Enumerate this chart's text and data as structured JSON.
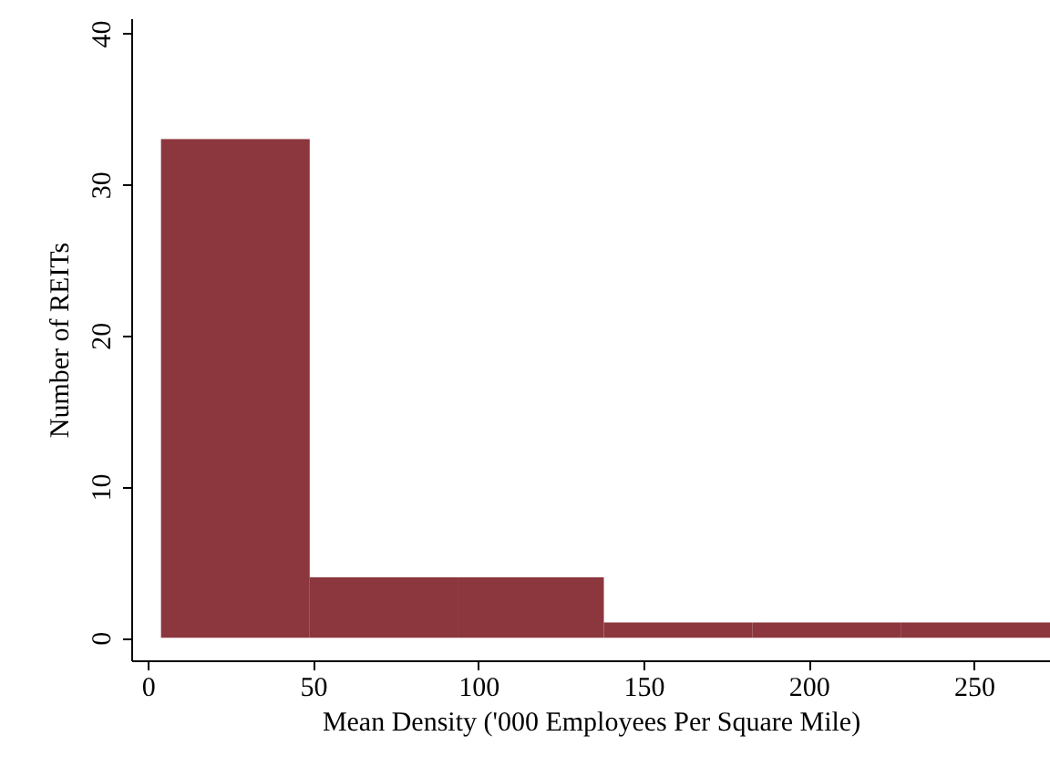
{
  "chart_data": {
    "type": "histogram",
    "xlabel": "Mean Density ('000 Employees Per Square Mile)",
    "ylabel": "Number of REITs",
    "bins": [
      4,
      49,
      94,
      138,
      183,
      228,
      273
    ],
    "values": [
      33,
      4,
      4,
      1,
      1,
      1
    ],
    "color": "#8b373d",
    "xlim": [
      -5,
      273
    ],
    "xticks": [
      0,
      50,
      100,
      150,
      200,
      250
    ],
    "ylim": [
      -1.5,
      41
    ],
    "yticks": [
      0,
      10,
      20,
      30,
      40
    ],
    "grid": false
  }
}
